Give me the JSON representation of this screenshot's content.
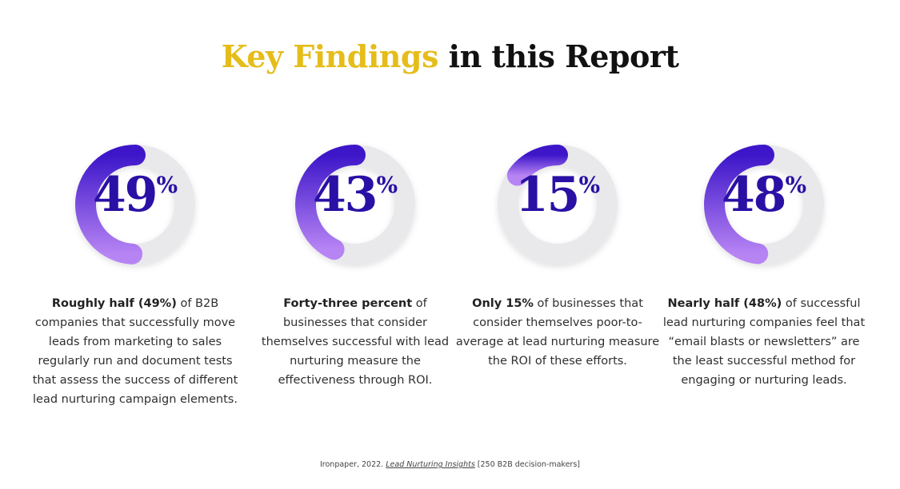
{
  "title": {
    "accent": "Key Findings",
    "rest": " in this Report"
  },
  "colors": {
    "accent": "#e5bd1a",
    "number": "#2a10a4",
    "ring_start": "#3d16c9",
    "ring_end": "#b784f4",
    "track": "#e9e9ec"
  },
  "chart_data": {
    "type": "donut",
    "title": "Key Findings in this Report",
    "items": [
      {
        "value": 49,
        "number": "49",
        "symbol": "%",
        "bold": "Roughly half (49%)",
        "text": " of B2B companies that successfully move leads from marketing to sales regularly run and document tests that assess the success of different lead nurturing campaign elements."
      },
      {
        "value": 43,
        "number": "43",
        "symbol": "%",
        "bold": "Forty-three percent",
        "text": " of businesses that consider themselves successful with lead nurturing measure the effectiveness through ROI."
      },
      {
        "value": 15,
        "number": "15",
        "symbol": "%",
        "bold": "Only 15%",
        "text": " of businesses that consider themselves poor-to-average at lead nurturing measure the ROI of these efforts."
      },
      {
        "value": 48,
        "number": "48",
        "symbol": "%",
        "bold": "Nearly half (48%)",
        "text": " of successful lead nurturing companies feel that “email blasts or newsletters” are the least successful method for engaging or nurturing leads."
      }
    ]
  },
  "source": {
    "prefix": "Ironpaper, 2022. ",
    "publication": "Lead Nurturing Insights",
    "suffix": " [250 B2B decision-makers]"
  }
}
